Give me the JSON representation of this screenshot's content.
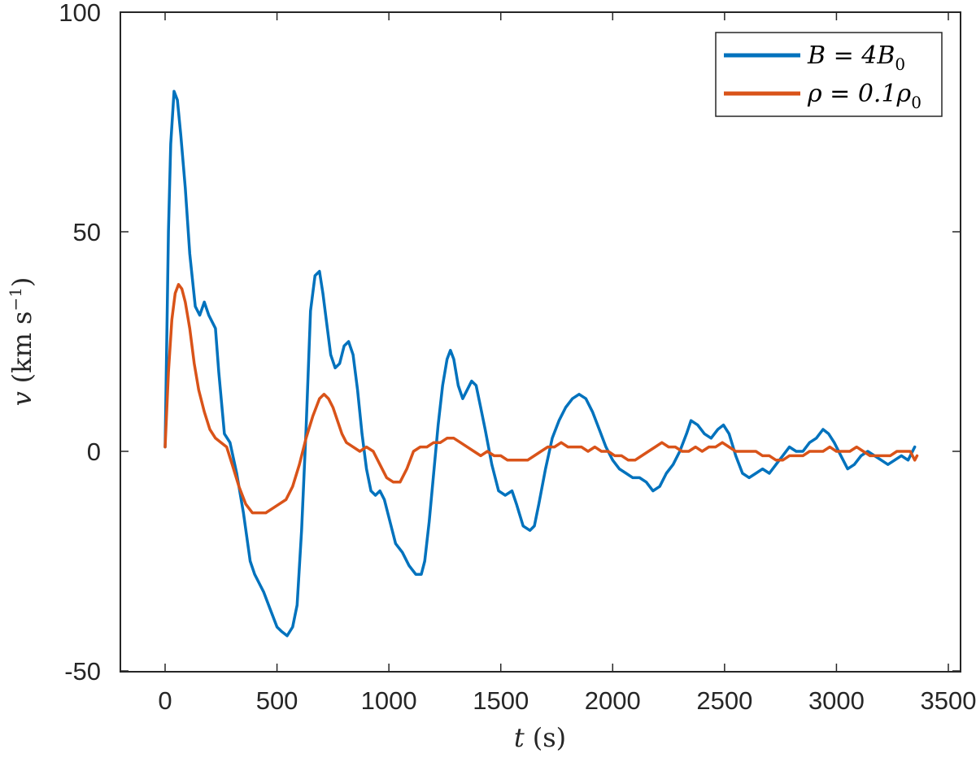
{
  "chart_data": {
    "type": "line",
    "title": "",
    "xlabel": "t (s)",
    "ylabel": "v (km s^-1)",
    "xlim": [
      -100,
      3600
    ],
    "ylim": [
      -50,
      100
    ],
    "xticks": [
      0,
      500,
      1000,
      1500,
      2000,
      2500,
      3000,
      3500
    ],
    "yticks": [
      -50,
      0,
      50,
      100
    ],
    "grid": false,
    "legend_position": "top-right",
    "series": [
      {
        "name": "B = 4B_0",
        "color": "#0072BD",
        "t": [
          0,
          15,
          25,
          40,
          55,
          70,
          90,
          110,
          135,
          155,
          175,
          195,
          215,
          225,
          240,
          265,
          290,
          320,
          350,
          380,
          400,
          420,
          440,
          470,
          500,
          520,
          545,
          570,
          590,
          610,
          630,
          650,
          670,
          690,
          705,
          720,
          740,
          760,
          780,
          800,
          820,
          840,
          860,
          880,
          900,
          920,
          940,
          960,
          980,
          1000,
          1030,
          1060,
          1090,
          1120,
          1145,
          1160,
          1180,
          1200,
          1220,
          1240,
          1260,
          1275,
          1290,
          1310,
          1330,
          1350,
          1370,
          1390,
          1410,
          1430,
          1460,
          1490,
          1520,
          1550,
          1570,
          1600,
          1630,
          1650,
          1670,
          1700,
          1730,
          1760,
          1790,
          1820,
          1850,
          1880,
          1910,
          1940,
          1970,
          2000,
          2030,
          2060,
          2090,
          2120,
          2150,
          2180,
          2210,
          2240,
          2270,
          2300,
          2330,
          2350,
          2380,
          2410,
          2440,
          2470,
          2495,
          2520,
          2550,
          2580,
          2610,
          2640,
          2670,
          2700,
          2730,
          2760,
          2790,
          2820,
          2850,
          2880,
          2910,
          2940,
          2965,
          2990,
          3020,
          3050,
          3080,
          3110,
          3140,
          3170,
          3200,
          3230,
          3260,
          3290,
          3320,
          3350
        ],
        "v": [
          1,
          50,
          70,
          82,
          80,
          72,
          60,
          45,
          33,
          31,
          34,
          31,
          29,
          28,
          18,
          4,
          2,
          -5,
          -14,
          -25,
          -28,
          -30,
          -32,
          -36,
          -40,
          -41,
          -42,
          -40,
          -35,
          -18,
          5,
          32,
          40,
          41,
          36,
          30,
          22,
          19,
          20,
          24,
          25,
          22,
          14,
          4,
          -4,
          -9,
          -10,
          -9,
          -11,
          -15,
          -21,
          -23,
          -26,
          -28,
          -28,
          -25,
          -16,
          -5,
          6,
          15,
          21,
          23,
          21,
          15,
          12,
          14,
          16,
          15,
          10,
          5,
          -3,
          -9,
          -10,
          -9,
          -12,
          -17,
          -18,
          -17,
          -12,
          -4,
          3,
          7,
          10,
          12,
          13,
          12,
          9,
          5,
          1,
          -2,
          -4,
          -5,
          -6,
          -6,
          -7,
          -9,
          -8,
          -5,
          -3,
          0,
          4,
          7,
          6,
          4,
          3,
          5,
          6,
          4,
          -1,
          -5,
          -6,
          -5,
          -4,
          -5,
          -3,
          -1,
          1,
          0,
          0,
          2,
          3,
          5,
          4,
          2,
          -1,
          -4,
          -3,
          -1,
          0,
          -1,
          -2,
          -3,
          -2,
          -1,
          -2,
          1
        ],
        "line_width": 3.5
      },
      {
        "name": "ρ = 0.1ρ_0",
        "color": "#D95319",
        "t": [
          0,
          15,
          30,
          45,
          60,
          75,
          90,
          110,
          130,
          150,
          175,
          200,
          225,
          250,
          275,
          300,
          330,
          360,
          390,
          420,
          450,
          480,
          510,
          540,
          570,
          600,
          630,
          660,
          690,
          710,
          730,
          750,
          770,
          790,
          810,
          840,
          870,
          900,
          930,
          960,
          990,
          1020,
          1050,
          1080,
          1110,
          1140,
          1170,
          1200,
          1230,
          1260,
          1290,
          1320,
          1350,
          1380,
          1410,
          1440,
          1470,
          1500,
          1530,
          1560,
          1590,
          1620,
          1650,
          1680,
          1710,
          1740,
          1770,
          1800,
          1830,
          1860,
          1890,
          1920,
          1950,
          1980,
          2010,
          2040,
          2070,
          2100,
          2130,
          2160,
          2190,
          2220,
          2250,
          2280,
          2310,
          2340,
          2370,
          2400,
          2430,
          2460,
          2490,
          2520,
          2550,
          2580,
          2610,
          2640,
          2670,
          2700,
          2730,
          2760,
          2790,
          2820,
          2850,
          2880,
          2910,
          2940,
          2970,
          3000,
          3030,
          3060,
          3090,
          3120,
          3150,
          3180,
          3210,
          3240,
          3270,
          3300,
          3330,
          3350,
          3360
        ],
        "v": [
          1,
          18,
          30,
          36,
          38,
          37,
          34,
          28,
          20,
          14,
          9,
          5,
          3,
          2,
          1,
          -3,
          -8,
          -12,
          -14,
          -14,
          -14,
          -13,
          -12,
          -11,
          -8,
          -3,
          3,
          8,
          12,
          13,
          12,
          10,
          7,
          4,
          2,
          1,
          0,
          1,
          0,
          -3,
          -6,
          -7,
          -7,
          -4,
          0,
          1,
          1,
          2,
          2,
          3,
          3,
          2,
          1,
          0,
          -1,
          0,
          -1,
          -1,
          -2,
          -2,
          -2,
          -2,
          -1,
          0,
          1,
          1,
          2,
          1,
          1,
          1,
          0,
          1,
          0,
          0,
          -1,
          -1,
          -2,
          -2,
          -1,
          0,
          1,
          2,
          1,
          1,
          0,
          0,
          1,
          0,
          1,
          1,
          2,
          1,
          0,
          0,
          0,
          0,
          -1,
          -1,
          -2,
          -2,
          -1,
          -1,
          -1,
          0,
          0,
          0,
          1,
          0,
          0,
          0,
          1,
          0,
          -1,
          -1,
          -1,
          -1,
          0,
          0,
          0,
          -2,
          -1
        ],
        "line_width": 3.5
      }
    ]
  },
  "axes": {
    "x_tick_labels": [
      "0",
      "500",
      "1000",
      "1500",
      "2000",
      "2500",
      "3000",
      "3500"
    ],
    "y_tick_labels": [
      "-50",
      "0",
      "50",
      "100"
    ],
    "x_title_var": "t",
    "x_title_unit": "(s)",
    "y_title_var": "v",
    "y_title_unit_open": "(km s",
    "y_title_unit_exp": "−1",
    "y_title_unit_close": ")"
  },
  "legend": {
    "entries": [
      {
        "label_main": "B = 4B",
        "label_sub": "0",
        "color": "#0072BD"
      },
      {
        "label_main": "ρ = 0.1ρ",
        "label_sub": "0",
        "color": "#D95319"
      }
    ]
  }
}
